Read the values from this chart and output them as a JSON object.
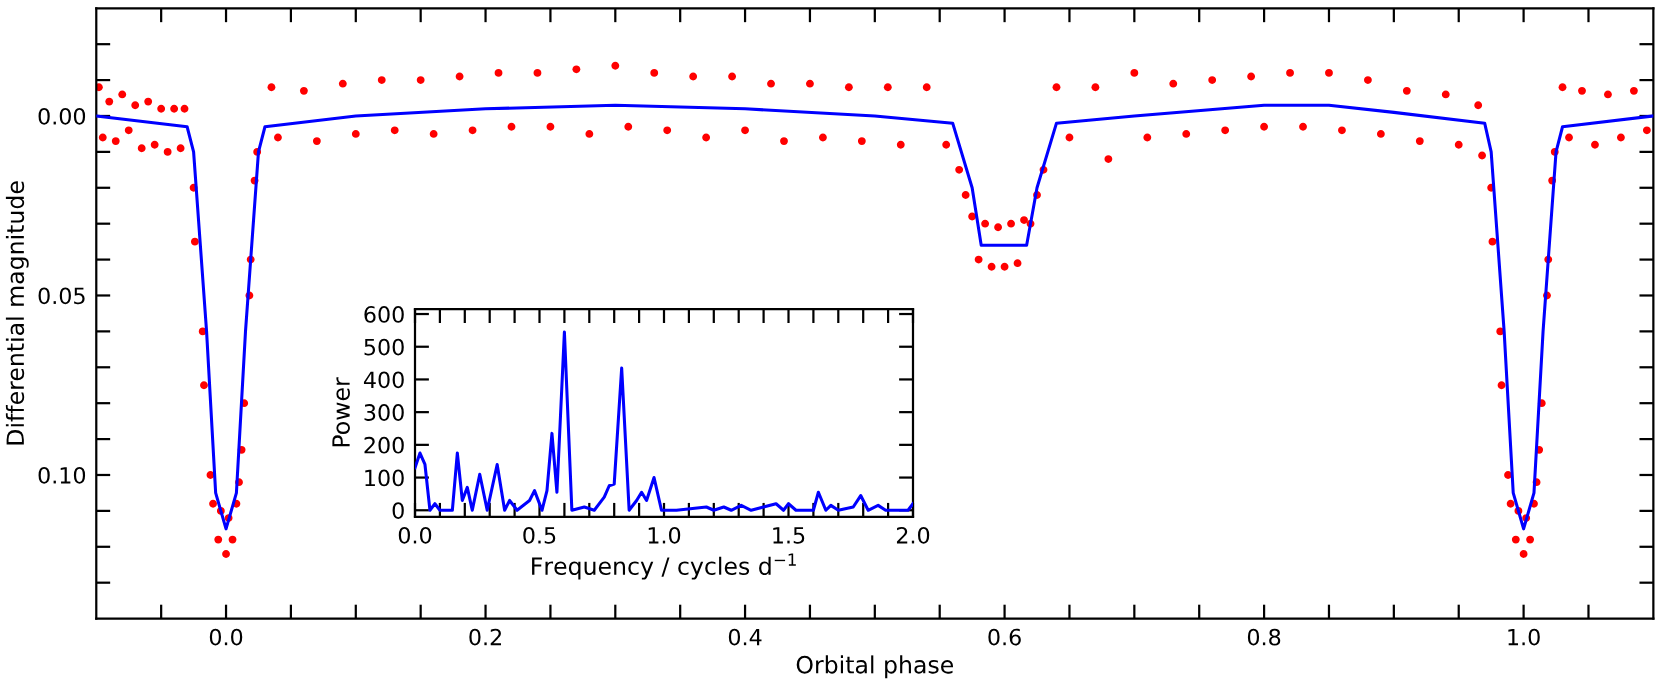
{
  "chart_data": [
    {
      "type": "scatter",
      "xlabel": "Orbital phase",
      "ylabel": "Differential magnitude",
      "xlim": [
        -0.1,
        1.1
      ],
      "ylim": [
        0.14,
        -0.03
      ],
      "xticks": [
        {
          "value": -0.05,
          "label": null
        },
        {
          "value": 0,
          "label": "0.0"
        },
        {
          "value": 0.05,
          "label": null
        },
        {
          "value": 0.1,
          "label": null
        },
        {
          "value": 0.15,
          "label": null
        },
        {
          "value": 0.2,
          "label": "0.2"
        },
        {
          "value": 0.25,
          "label": null
        },
        {
          "value": 0.3,
          "label": null
        },
        {
          "value": 0.35,
          "label": null
        },
        {
          "value": 0.4,
          "label": "0.4"
        },
        {
          "value": 0.45,
          "label": null
        },
        {
          "value": 0.5,
          "label": null
        },
        {
          "value": 0.55,
          "label": null
        },
        {
          "value": 0.6,
          "label": "0.6"
        },
        {
          "value": 0.65,
          "label": null
        },
        {
          "value": 0.7,
          "label": null
        },
        {
          "value": 0.75,
          "label": null
        },
        {
          "value": 0.8,
          "label": "0.8"
        },
        {
          "value": 0.85,
          "label": null
        },
        {
          "value": 0.9,
          "label": null
        },
        {
          "value": 0.95,
          "label": null
        },
        {
          "value": 1.0,
          "label": "1.0"
        },
        {
          "value": 1.05,
          "label": null
        }
      ],
      "yticks": [
        {
          "value": -0.02,
          "label": null
        },
        {
          "value": -0.01,
          "label": null
        },
        {
          "value": 0,
          "label": "0.00"
        },
        {
          "value": 0.01,
          "label": null
        },
        {
          "value": 0.02,
          "label": null
        },
        {
          "value": 0.03,
          "label": null
        },
        {
          "value": 0.04,
          "label": null
        },
        {
          "value": 0.05,
          "label": "0.05"
        },
        {
          "value": 0.06,
          "label": null
        },
        {
          "value": 0.07,
          "label": null
        },
        {
          "value": 0.08,
          "label": null
        },
        {
          "value": 0.09,
          "label": null
        },
        {
          "value": 0.1,
          "label": "0.10"
        },
        {
          "value": 0.11,
          "label": null
        },
        {
          "value": 0.12,
          "label": null
        },
        {
          "value": 0.13,
          "label": null
        }
      ],
      "marker": "circle",
      "series": [
        {
          "type": "scatter",
          "color": "#ff0000",
          "x": [
            -0.098,
            -0.095,
            -0.09,
            -0.085,
            -0.08,
            -0.075,
            -0.07,
            -0.065,
            -0.06,
            -0.055,
            -0.05,
            -0.045,
            -0.04,
            -0.035,
            -0.032,
            -0.025,
            -0.024,
            -0.018,
            -0.017,
            -0.012,
            -0.01,
            -0.006,
            -0.004,
            0,
            0.002,
            0.005,
            0.008,
            0.01,
            0.012,
            0.014,
            0.018,
            0.019,
            0.022,
            0.024,
            0.035,
            0.04,
            0.06,
            0.07,
            0.09,
            0.1,
            0.12,
            0.13,
            0.15,
            0.16,
            0.18,
            0.19,
            0.21,
            0.22,
            0.24,
            0.25,
            0.27,
            0.28,
            0.3,
            0.31,
            0.33,
            0.34,
            0.36,
            0.37,
            0.39,
            0.4,
            0.42,
            0.43,
            0.45,
            0.46,
            0.48,
            0.49,
            0.51,
            0.52,
            0.54,
            0.555,
            0.565,
            0.57,
            0.575,
            0.58,
            0.585,
            0.59,
            0.595,
            0.6,
            0.605,
            0.61,
            0.615,
            0.62,
            0.625,
            0.63,
            0.64,
            0.65,
            0.67,
            0.68,
            0.7,
            0.71,
            0.73,
            0.74,
            0.76,
            0.77,
            0.79,
            0.8,
            0.82,
            0.83,
            0.85,
            0.86,
            0.88,
            0.89,
            0.91,
            0.92,
            0.94,
            0.95,
            0.965,
            0.968,
            0.975,
            0.976,
            0.982,
            0.983,
            0.988,
            0.99,
            0.994,
            0.996,
            1.0,
            1.002,
            1.005,
            1.008,
            1.01,
            1.012,
            1.014,
            1.018,
            1.019,
            1.022,
            1.024,
            1.03,
            1.035,
            1.045,
            1.055,
            1.065,
            1.075,
            1.085,
            1.095
          ],
          "values": [
            -0.008,
            0.006,
            -0.004,
            0.007,
            -0.006,
            0.004,
            -0.003,
            0.009,
            -0.004,
            0.008,
            -0.002,
            0.01,
            -0.002,
            0.009,
            -0.002,
            0.02,
            0.035,
            0.06,
            0.075,
            0.1,
            0.108,
            0.118,
            0.11,
            0.122,
            0.112,
            0.118,
            0.108,
            0.102,
            0.093,
            0.08,
            0.05,
            0.04,
            0.018,
            0.01,
            -0.008,
            0.006,
            -0.007,
            0.007,
            -0.009,
            0.005,
            -0.01,
            0.004,
            -0.01,
            0.005,
            -0.011,
            0.004,
            -0.012,
            0.003,
            -0.012,
            0.003,
            -0.013,
            0.005,
            -0.014,
            0.003,
            -0.012,
            0.004,
            -0.011,
            0.006,
            -0.011,
            0.004,
            -0.009,
            0.007,
            -0.009,
            0.006,
            -0.008,
            0.007,
            -0.008,
            0.008,
            -0.008,
            0.008,
            0.015,
            0.022,
            0.028,
            0.04,
            0.03,
            0.042,
            0.031,
            0.042,
            0.03,
            0.041,
            0.029,
            0.03,
            0.022,
            0.015,
            -0.008,
            0.006,
            -0.008,
            0.012,
            -0.012,
            0.006,
            -0.009,
            0.005,
            -0.01,
            0.004,
            -0.011,
            0.003,
            -0.012,
            0.003,
            -0.012,
            0.004,
            -0.01,
            0.005,
            -0.007,
            0.007,
            -0.006,
            0.008,
            -0.003,
            0.011,
            0.02,
            0.035,
            0.06,
            0.075,
            0.1,
            0.108,
            0.118,
            0.11,
            0.122,
            0.112,
            0.118,
            0.108,
            0.102,
            0.093,
            0.08,
            0.05,
            0.04,
            0.018,
            0.01,
            -0.008,
            0.006,
            -0.007,
            0.008,
            -0.006,
            0.006,
            -0.007,
            0.004
          ]
        },
        {
          "type": "line",
          "color": "#0000ff",
          "marker": "none",
          "x": [
            -0.1,
            -0.03,
            -0.025,
            -0.015,
            -0.008,
            0,
            0.008,
            0.015,
            0.025,
            0.03,
            0.1,
            0.2,
            0.3,
            0.4,
            0.5,
            0.56,
            0.575,
            0.582,
            0.617,
            0.625,
            0.64,
            0.7,
            0.8,
            0.85,
            0.9,
            0.97,
            0.975,
            0.985,
            0.992,
            1.0,
            1.008,
            1.015,
            1.025,
            1.03,
            1.1
          ],
          "values": [
            0.0,
            0.003,
            0.01,
            0.06,
            0.105,
            0.115,
            0.105,
            0.06,
            0.01,
            0.003,
            0.0,
            -0.002,
            -0.003,
            -0.002,
            0.0,
            0.002,
            0.02,
            0.036,
            0.036,
            0.02,
            0.002,
            0.0,
            -0.003,
            -0.003,
            -0.001,
            0.002,
            0.01,
            0.06,
            0.105,
            0.115,
            0.105,
            0.06,
            0.01,
            0.003,
            0.0
          ]
        }
      ]
    },
    {
      "type": "line",
      "xlabel": "Frequency / cycles d$^{−1}$",
      "ylabel": "Power",
      "xlim": [
        0,
        2
      ],
      "ylim": [
        -20,
        615
      ],
      "xticks": [
        {
          "value": 0,
          "label": "0.0"
        },
        {
          "value": 0.1,
          "label": null
        },
        {
          "value": 0.2,
          "label": null
        },
        {
          "value": 0.3,
          "label": null
        },
        {
          "value": 0.4,
          "label": null
        },
        {
          "value": 0.5,
          "label": "0.5"
        },
        {
          "value": 0.6,
          "label": null
        },
        {
          "value": 0.7,
          "label": null
        },
        {
          "value": 0.8,
          "label": null
        },
        {
          "value": 0.9,
          "label": null
        },
        {
          "value": 1.0,
          "label": "1.0"
        },
        {
          "value": 1.1,
          "label": null
        },
        {
          "value": 1.2,
          "label": null
        },
        {
          "value": 1.3,
          "label": null
        },
        {
          "value": 1.4,
          "label": null
        },
        {
          "value": 1.5,
          "label": "1.5"
        },
        {
          "value": 1.6,
          "label": null
        },
        {
          "value": 1.7,
          "label": null
        },
        {
          "value": 1.8,
          "label": null
        },
        {
          "value": 1.9,
          "label": null
        },
        {
          "value": 2.0,
          "label": "2.0"
        }
      ],
      "yticks": [
        0,
        100,
        200,
        300,
        400,
        500,
        600
      ],
      "series": [
        {
          "color": "#0000ff",
          "x": [
            0,
            0.02,
            0.04,
            0.06,
            0.08,
            0.1,
            0.15,
            0.17,
            0.19,
            0.21,
            0.23,
            0.26,
            0.29,
            0.33,
            0.36,
            0.38,
            0.41,
            0.46,
            0.48,
            0.51,
            0.53,
            0.55,
            0.57,
            0.6,
            0.63,
            0.68,
            0.72,
            0.76,
            0.78,
            0.8,
            0.83,
            0.86,
            0.89,
            0.91,
            0.93,
            0.96,
            0.99,
            1.05,
            1.17,
            1.2,
            1.24,
            1.27,
            1.31,
            1.35,
            1.45,
            1.48,
            1.5,
            1.53,
            1.6,
            1.62,
            1.65,
            1.67,
            1.7,
            1.76,
            1.79,
            1.82,
            1.86,
            1.89,
            1.98,
            2.0
          ],
          "values": [
            130,
            175,
            140,
            0,
            20,
            0,
            0,
            175,
            30,
            70,
            0,
            110,
            0,
            140,
            0,
            30,
            0,
            30,
            60,
            0,
            60,
            235,
            55,
            545,
            0,
            10,
            0,
            40,
            75,
            80,
            435,
            0,
            30,
            55,
            30,
            100,
            0,
            0,
            10,
            0,
            10,
            0,
            15,
            0,
            20,
            0,
            20,
            0,
            0,
            55,
            0,
            15,
            0,
            10,
            45,
            0,
            15,
            0,
            0,
            20
          ]
        }
      ]
    }
  ]
}
